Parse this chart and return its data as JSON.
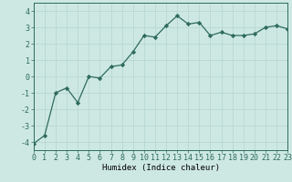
{
  "x": [
    0,
    1,
    2,
    3,
    4,
    5,
    6,
    7,
    8,
    9,
    10,
    11,
    12,
    13,
    14,
    15,
    16,
    17,
    18,
    19,
    20,
    21,
    22,
    23
  ],
  "y": [
    -4.1,
    -3.6,
    -1.0,
    -0.7,
    -1.6,
    0.0,
    -0.1,
    0.6,
    0.7,
    1.5,
    2.5,
    2.4,
    3.1,
    3.7,
    3.2,
    3.3,
    2.5,
    2.7,
    2.5,
    2.5,
    2.6,
    3.0,
    3.1,
    2.9
  ],
  "xlabel": "Humidex (Indice chaleur)",
  "xlim": [
    0,
    23
  ],
  "ylim": [
    -4.5,
    4.5
  ],
  "yticks": [
    -4,
    -3,
    -2,
    -1,
    0,
    1,
    2,
    3,
    4
  ],
  "xticks": [
    0,
    1,
    2,
    3,
    4,
    5,
    6,
    7,
    8,
    9,
    10,
    11,
    12,
    13,
    14,
    15,
    16,
    17,
    18,
    19,
    20,
    21,
    22,
    23
  ],
  "line_color": "#2e6b5e",
  "marker": "D",
  "marker_size": 2.2,
  "bg_color": "#cde8e2",
  "grid_color": "#b8d8d2",
  "tick_fontsize": 6.0,
  "xlabel_fontsize": 6.5
}
